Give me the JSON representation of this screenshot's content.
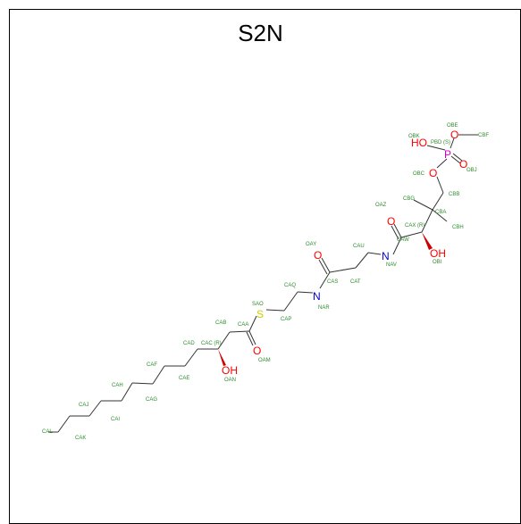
{
  "title": "S2N",
  "colors": {
    "carbon_label": "#2e8b2e",
    "oxygen": "#ff0000",
    "nitrogen": "#0000cc",
    "sulfur": "#cccc00",
    "phosphorus": "#cc00cc",
    "bond": "#333333"
  },
  "atom_symbols": {
    "oh_top": "HO",
    "p": "P",
    "o_pt": "O",
    "o_pr": "O",
    "o_pb": "O",
    "o_amide1": "O",
    "oh_mid": "OH",
    "n1": "N",
    "o_amide2": "O",
    "n2": "N",
    "s": "S",
    "o_ester": "O",
    "oh_low": "OH"
  },
  "atom_labels": {
    "OBE": "OBE",
    "CBF": "CBF",
    "OBK": "OBK",
    "PBD": "PBD (S)",
    "OBJ": "OBJ",
    "OBC": "OBC",
    "CBG": "CBG",
    "CBB": "CBB",
    "OAZ": "OAZ",
    "CBA": "CBA",
    "CAX": "CAX (R)",
    "CBH": "CBH",
    "CAW": "CAW",
    "OBI": "OBI",
    "OAY": "OAY",
    "CAU": "CAU",
    "NAV": "NAV",
    "CAS": "CAS",
    "CAT": "CAT",
    "CAQ": "CAQ",
    "NAR": "NAR",
    "SAO": "SAO",
    "CAP": "CAP",
    "CAB": "CAB",
    "CAA": "CAA",
    "CAD": "CAD",
    "CAC": "CAC (R)",
    "OAM": "OAM",
    "CAF": "CAF",
    "CAE": "CAE",
    "OAN": "OAN",
    "CAH": "CAH",
    "CAG": "CAG",
    "CAJ": "CAJ",
    "CAI": "CAI",
    "CAL": "CAL",
    "CAK": "CAK"
  }
}
